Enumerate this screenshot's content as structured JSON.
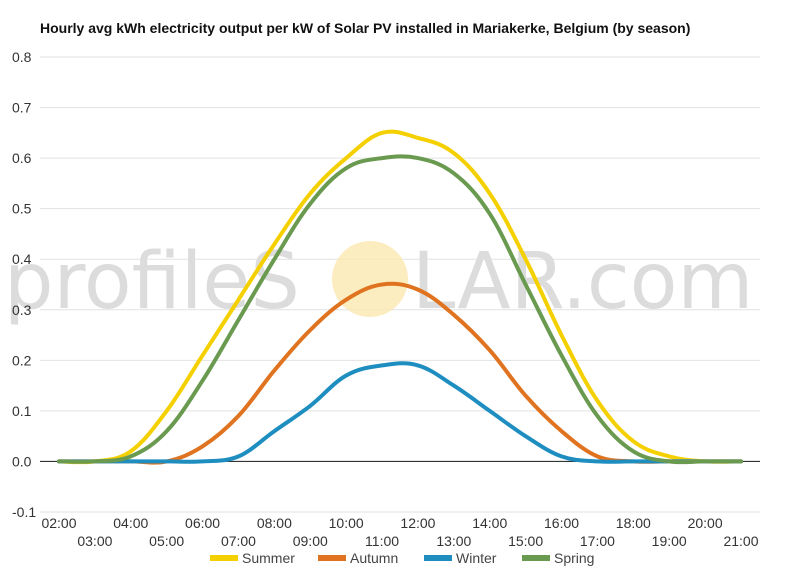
{
  "chart_data": {
    "type": "line",
    "title": "Hourly avg kWh electricity output per kW of Solar PV installed in Mariakerke, Belgium (by season)",
    "xlabel": "",
    "ylabel": "",
    "x": [
      "02:00",
      "03:00",
      "04:00",
      "05:00",
      "06:00",
      "07:00",
      "08:00",
      "09:00",
      "10:00",
      "11:00",
      "12:00",
      "13:00",
      "14:00",
      "15:00",
      "16:00",
      "17:00",
      "18:00",
      "19:00",
      "20:00",
      "21:00"
    ],
    "x_tick_labels_top": [
      "02:00",
      "04:00",
      "06:00",
      "08:00",
      "10:00",
      "12:00",
      "14:00",
      "16:00",
      "18:00",
      "20:00"
    ],
    "x_tick_labels_bottom": [
      "03:00",
      "05:00",
      "07:00",
      "09:00",
      "11:00",
      "13:00",
      "15:00",
      "17:00",
      "19:00",
      "21:00"
    ],
    "ylim": [
      -0.1,
      0.8
    ],
    "y_ticks": [
      "-0.1",
      "0.0",
      "0.1",
      "0.2",
      "0.3",
      "0.4",
      "0.5",
      "0.6",
      "0.7",
      "0.8"
    ],
    "grid": true,
    "legend_position": "bottom",
    "series": [
      {
        "name": "Summer",
        "color": "#f5d000",
        "values": [
          0.0,
          0.0,
          0.02,
          0.1,
          0.21,
          0.32,
          0.43,
          0.53,
          0.6,
          0.65,
          0.64,
          0.61,
          0.53,
          0.4,
          0.25,
          0.12,
          0.04,
          0.01,
          0.0,
          0.0
        ]
      },
      {
        "name": "Autumn",
        "color": "#e0731f",
        "values": [
          0.0,
          0.0,
          0.0,
          0.0,
          0.03,
          0.09,
          0.18,
          0.26,
          0.32,
          0.35,
          0.34,
          0.29,
          0.22,
          0.13,
          0.06,
          0.01,
          0.0,
          0.0,
          0.0,
          0.0
        ]
      },
      {
        "name": "Winter",
        "color": "#1e8dc0",
        "values": [
          0.0,
          0.0,
          0.0,
          0.0,
          0.0,
          0.01,
          0.06,
          0.11,
          0.17,
          0.19,
          0.19,
          0.15,
          0.1,
          0.05,
          0.01,
          0.0,
          0.0,
          0.0,
          0.0,
          0.0
        ]
      },
      {
        "name": "Spring",
        "color": "#6a9a50",
        "values": [
          0.0,
          0.0,
          0.01,
          0.06,
          0.16,
          0.28,
          0.4,
          0.51,
          0.58,
          0.6,
          0.6,
          0.57,
          0.49,
          0.35,
          0.21,
          0.09,
          0.02,
          0.0,
          0.0,
          0.0
        ]
      }
    ]
  },
  "watermark": {
    "text_left": "profileS",
    "text_right": "LAR.com",
    "sun_color": "#fbe9b0"
  }
}
